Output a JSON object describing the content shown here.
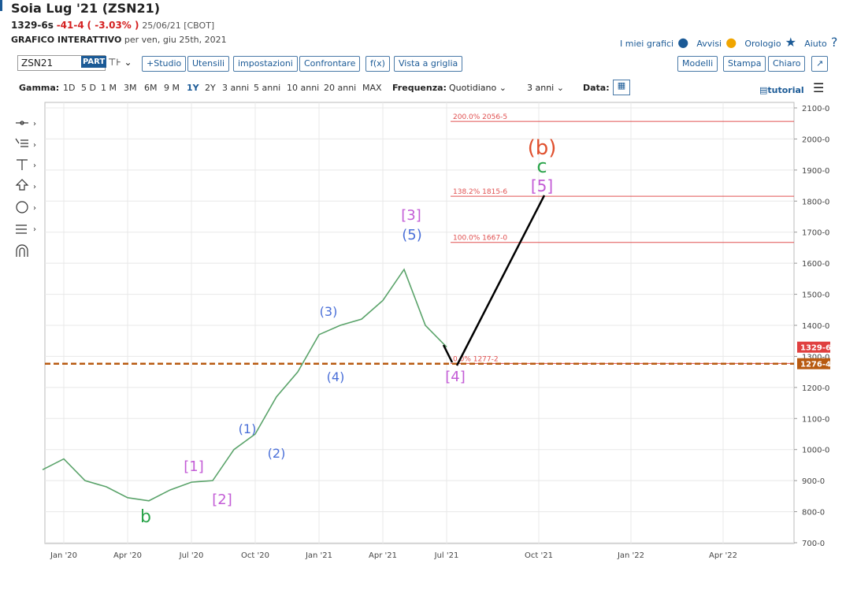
{
  "header": {
    "title": "Soia Lug '21 (ZSN21)",
    "price": "1329-6s",
    "change": "-41-4",
    "change_pct": "( -3.03% )",
    "date_exchange": "25/06/21 [CBOT]",
    "chart_kind": "GRAFICO INTERATTIVO",
    "chart_date": "per ven, giu 25th, 2021",
    "links": [
      "I miei grafici",
      "Avvisi",
      "Orologio",
      "Aiuto"
    ]
  },
  "toolbar": {
    "symbol": "ZSN21",
    "part": "PART",
    "buttons": [
      "+Studio",
      "Utensili",
      "impostazioni",
      "Confrontare",
      "f(x)",
      "Vista a griglia"
    ],
    "right_buttons": [
      "Modelli",
      "Stampa",
      "Chiaro"
    ]
  },
  "range_bar": {
    "label": "Gamma:",
    "ranges": [
      "1D",
      "5 D",
      "1 M",
      "3M",
      "6M",
      "9 M",
      "1Y",
      "2Y",
      "3 anni",
      "5 anni",
      "10 anni",
      "20 anni",
      "MAX"
    ],
    "selected": "1Y",
    "frequency_label": "Frequenza:",
    "frequency": "Quotidiano",
    "period": "3 anni",
    "date_label": "Data:",
    "tutorial": "tutorial"
  },
  "chart": {
    "type": "line",
    "x": [
      "Dec '19",
      "Jan '20",
      "Feb '20",
      "Mar '20",
      "Apr '20",
      "May '20",
      "Jun '20",
      "Jul '20",
      "Aug '20",
      "Sep '20",
      "Oct '20",
      "Nov '20",
      "Dec '20",
      "Jan '21",
      "Feb '21",
      "Mar '21",
      "Apr '21",
      "May '21",
      "Jun '21",
      "Jul '21"
    ],
    "values": [
      935,
      970,
      900,
      880,
      845,
      835,
      870,
      895,
      900,
      1000,
      1050,
      1170,
      1250,
      1370,
      1400,
      1420,
      1480,
      1580,
      1400,
      1330
    ],
    "color": "#5aa36a",
    "xticks": [
      "Jan '20",
      "Apr '20",
      "Jul '20",
      "Oct '20",
      "Jan '21",
      "Apr '21",
      "Jul '21",
      "Oct '21",
      "Jan '22",
      "Apr '22"
    ],
    "ylim": [
      700,
      2100
    ],
    "yticks": [
      {
        "value": 700,
        "label": "700-0"
      },
      {
        "value": 800,
        "label": "800-0"
      },
      {
        "value": 900,
        "label": "900-0"
      },
      {
        "value": 1000,
        "label": "1000-0"
      },
      {
        "value": 1100,
        "label": "1100-0"
      },
      {
        "value": 1200,
        "label": "1200-0"
      },
      {
        "value": 1300,
        "label": "1300-0"
      },
      {
        "value": 1400,
        "label": "1400-0"
      },
      {
        "value": 1500,
        "label": "1500-0"
      },
      {
        "value": 1600,
        "label": "1600-0"
      },
      {
        "value": 1700,
        "label": "1700-0"
      },
      {
        "value": 1800,
        "label": "1800-0"
      },
      {
        "value": 1900,
        "label": "1900-0"
      },
      {
        "value": 2000,
        "label": "2000-0"
      },
      {
        "value": 2100,
        "label": "2100-0"
      }
    ],
    "grid": true,
    "fib_levels": [
      {
        "value": 2056.625,
        "label": "200.0% 2056-5"
      },
      {
        "value": 1815.75,
        "label": "138.2% 1815-6"
      },
      {
        "value": 1667,
        "label": "100.0% 1667-0"
      },
      {
        "value": 1277.25,
        "label": "0.0% 1277-2"
      }
    ],
    "last_price": {
      "value": 1329.75,
      "label": "1329-6"
    },
    "support": {
      "value": 1276.5,
      "label": "1276-4"
    },
    "wave_labels": [
      "(b)",
      "c",
      "[5]",
      "[3]",
      "(5)",
      "(3)",
      "(4)",
      "[4]",
      "(1)",
      "(2)",
      "[1]",
      "[2]",
      "b"
    ]
  }
}
